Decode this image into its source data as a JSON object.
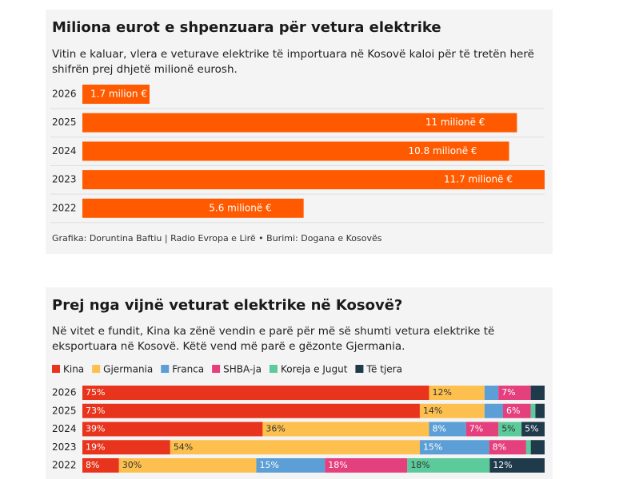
{
  "chart_data": [
    {
      "type": "bar",
      "orientation": "horizontal",
      "title": "Miliona eurot e shpenzuara për vetura elektrike",
      "subtitle": "Vitin e kaluar, vlera e veturave elektrike të importuara në Kosovë kaloi për të tretën herë shifrën prej dhjetë milionë eurosh.",
      "source": "Grafika: Doruntina Baftiu | Radio Evropa e Lirë • Burimi: Dogana e Kosovës",
      "categories": [
        "2026",
        "2025",
        "2024",
        "2023",
        "2022"
      ],
      "values": [
        1.7,
        11,
        10.8,
        11.7,
        5.6
      ],
      "value_labels": [
        "1.7 milion €",
        "11 milionë €",
        "10.8 milionë €",
        "11.7 milionë €",
        "5.6 milionë €"
      ],
      "color": "#ff5a00"
    },
    {
      "type": "stacked-bar",
      "orientation": "horizontal",
      "title": "Prej nga vijnë veturat elektrike në Kosovë?",
      "subtitle": "Në vitet e fundit, Kina ka zënë vendin e parë për më së shumti vetura elektrike të eksportuara në Kosovë. Këtë vend më parë e gëzonte Gjermania.",
      "categories": [
        "2026",
        "2025",
        "2024",
        "2023",
        "2022"
      ],
      "series": [
        {
          "name": "Kina",
          "color": "#e8341c",
          "values": [
            75,
            73,
            39,
            19,
            8
          ],
          "value_labels": [
            "75%",
            "73%",
            "39%",
            "19%",
            "8%"
          ]
        },
        {
          "name": "Gjermania",
          "color": "#fdc04e",
          "values": [
            12,
            14,
            36,
            54,
            30
          ],
          "value_labels": [
            "12%",
            "14%",
            "36%",
            "54%",
            "30%"
          ]
        },
        {
          "name": "Franca",
          "color": "#5b9fd6",
          "values": [
            3,
            4,
            8,
            15,
            15
          ],
          "value_labels": [
            null,
            null,
            "8%",
            "15%",
            "15%"
          ]
        },
        {
          "name": "SHBA-ja",
          "color": "#e3407d",
          "values": [
            7,
            6,
            7,
            8,
            18
          ],
          "value_labels": [
            "7%",
            "6%",
            "7%",
            "8%",
            "18%"
          ]
        },
        {
          "name": "Koreja e Jugut",
          "color": "#5ccb9b",
          "values": [
            0,
            1,
            5,
            1,
            18
          ],
          "value_labels": [
            null,
            null,
            "5%",
            null,
            "18%"
          ]
        },
        {
          "name": "Të tjera",
          "color": "#1f3a4b",
          "values": [
            3,
            2,
            5,
            3,
            12
          ],
          "value_labels": [
            null,
            null,
            "5%",
            null,
            "12%"
          ]
        }
      ]
    }
  ]
}
